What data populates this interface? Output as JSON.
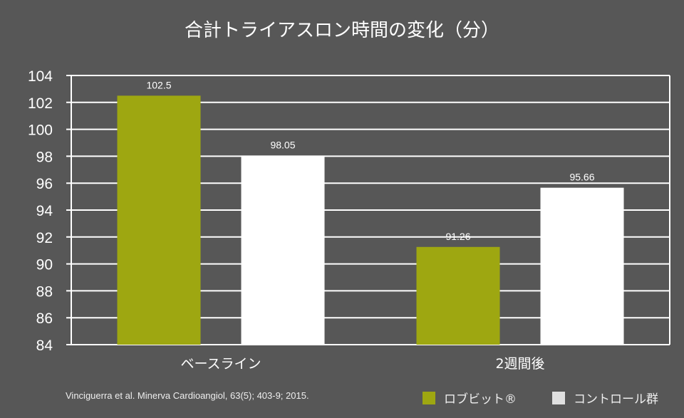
{
  "chart_data": {
    "type": "bar",
    "title": "合計トライアスロン時間の変化（分）",
    "categories": [
      "ベースライン",
      "2週間後"
    ],
    "series": [
      {
        "name": "ロブビット®",
        "color": "#9ea711",
        "values": [
          102.5,
          91.26
        ],
        "labels": [
          "102.5",
          "91.26"
        ]
      },
      {
        "name": "コントロール群",
        "color": "#ffffff",
        "values": [
          98.05,
          95.66
        ],
        "labels": [
          "98.05",
          "95.66"
        ]
      }
    ],
    "ylim": [
      84,
      104
    ],
    "yticks": [
      84,
      86,
      88,
      90,
      92,
      94,
      96,
      98,
      100,
      102,
      104
    ],
    "grid": true,
    "legend": "bottom-right",
    "xlabel": "",
    "ylabel": ""
  },
  "source": "Vinciguerra et al. Minerva Cardioangiol, 63(5); 403-9; 2015.",
  "legend_colors": [
    "#9ea711",
    "#e0e0e0"
  ]
}
